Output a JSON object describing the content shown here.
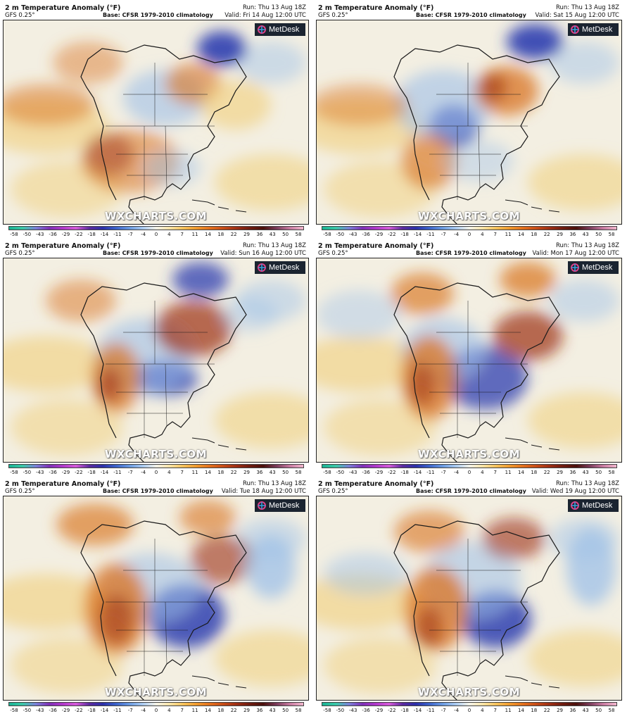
{
  "panels": [
    {
      "title": "2 m Temperature Anomaly (°F)",
      "model": "GFS 0.25°",
      "base": "Base: CFSR 1979-2010 climatology",
      "run": "Run: Thu 13 Aug 18Z",
      "valid": "Valid: Fri 14 Aug 12:00 UTC"
    },
    {
      "title": "2 m Temperature Anomaly (°F)",
      "model": "GFS 0.25°",
      "base": "Base: CFSR 1979-2010 climatology",
      "run": "Run: Thu 13 Aug 18Z",
      "valid": "Valid: Sat 15 Aug 12:00 UTC"
    },
    {
      "title": "2 m Temperature Anomaly (°F)",
      "model": "GFS 0.25°",
      "base": "Base: CFSR 1979-2010 climatology",
      "run": "Run: Thu 13 Aug 18Z",
      "valid": "Valid: Sun 16 Aug 12:00 UTC"
    },
    {
      "title": "2 m Temperature Anomaly (°F)",
      "model": "GFS 0.25°",
      "base": "Base: CFSR 1979-2010 climatology",
      "run": "Run: Thu 13 Aug 18Z",
      "valid": "Valid: Mon 17 Aug 12:00 UTC"
    },
    {
      "title": "2 m Temperature Anomaly (°F)",
      "model": "GFS 0.25°",
      "base": "Base: CFSR 1979-2010 climatology",
      "run": "Run: Thu 13 Aug 18Z",
      "valid": "Valid: Tue 18 Aug 12:00 UTC"
    },
    {
      "title": "2 m Temperature Anomaly (°F)",
      "model": "GFS 0.25°",
      "base": "Base: CFSR 1979-2010 climatology",
      "run": "Run: Thu 13 Aug 18Z",
      "valid": "Valid: Wed 19 Aug 12:00 UTC"
    }
  ],
  "logo_text": "MetDesk",
  "watermark": "WXCHARTS.COM",
  "colorbar": {
    "ticks": [
      "-58",
      "-50",
      "-43",
      "-36",
      "-29",
      "-22",
      "-18",
      "-14",
      "-11",
      "-7",
      "-4",
      "0",
      "4",
      "7",
      "11",
      "14",
      "18",
      "22",
      "29",
      "36",
      "43",
      "50",
      "58"
    ],
    "colors": [
      "#19b394",
      "#3bc7a6",
      "#7a7fd6",
      "#7d2fb6",
      "#b038c9",
      "#d45ad8",
      "#5a2a9e",
      "#2b2fa8",
      "#3c63c9",
      "#6a9ae0",
      "#a9c9ee",
      "#f2f0e6",
      "#f7e3a6",
      "#f4c25c",
      "#ef9a2e",
      "#e2701d",
      "#c64c17",
      "#9d2e14",
      "#6e1b10",
      "#4a0f0b",
      "#7a3b5a",
      "#c77aa0",
      "#f0b6cc"
    ]
  },
  "colors": {
    "land_line": "#1a1a1a",
    "ocean_neutral": "#f3efe2",
    "warm": "#d9731f",
    "hot": "#9b2f14",
    "cool": "#9ec0e8",
    "cold": "#2e3fb0",
    "yellow": "#f1cf7a"
  }
}
